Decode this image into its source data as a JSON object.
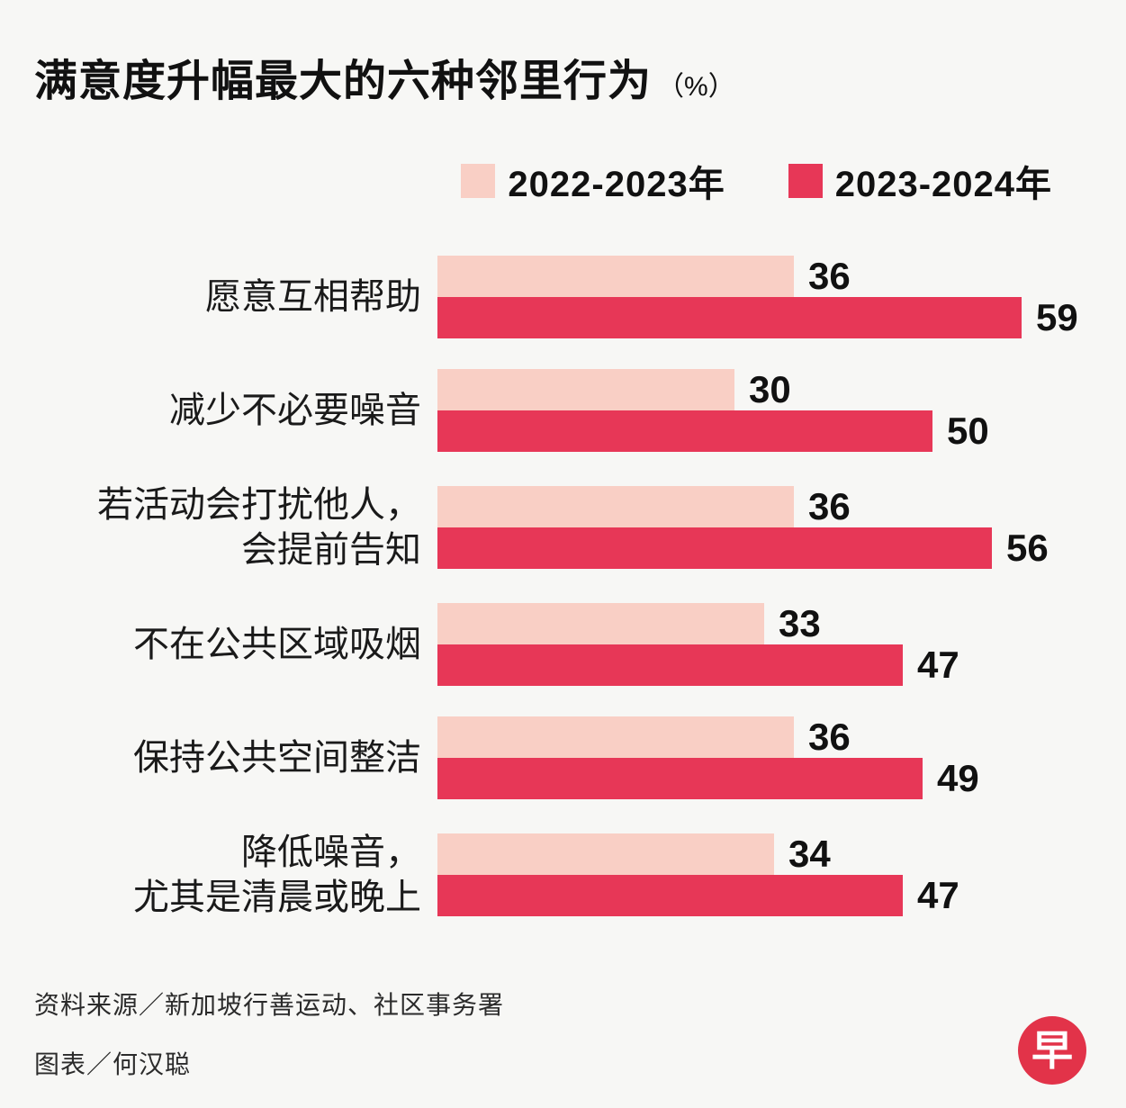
{
  "title": {
    "text": "满意度升幅最大的六种邻里行为",
    "unit": "（%）"
  },
  "legend": [
    {
      "label": "2022-2023年",
      "color": "#F9CFC5"
    },
    {
      "label": "2023-2024年",
      "color": "#E73757"
    }
  ],
  "chart_data": {
    "type": "bar",
    "orientation": "horizontal",
    "title": "满意度升幅最大的六种邻里行为（%）",
    "categories": [
      "愿意互相帮助",
      "减少不必要噪音",
      "若活动会打扰他人，\n会提前告知",
      "不在公共区域吸烟",
      "保持公共空间整洁",
      "降低噪音，\n尤其是清晨或晚上"
    ],
    "series": [
      {
        "name": "2022-2023年",
        "color": "#F9CFC5",
        "values": [
          36,
          30,
          36,
          33,
          36,
          34
        ]
      },
      {
        "name": "2023-2024年",
        "color": "#E73757",
        "values": [
          59,
          50,
          56,
          47,
          49,
          47
        ]
      }
    ],
    "xlim": [
      0,
      62
    ],
    "grid": false,
    "legend_position": "top-right",
    "value_labels": true
  },
  "footer": {
    "source": "资料来源／新加坡行善运动、社区事务署",
    "credit": "图表／何汉聪"
  },
  "logo": {
    "glyph": "早",
    "color": "#E23349"
  }
}
